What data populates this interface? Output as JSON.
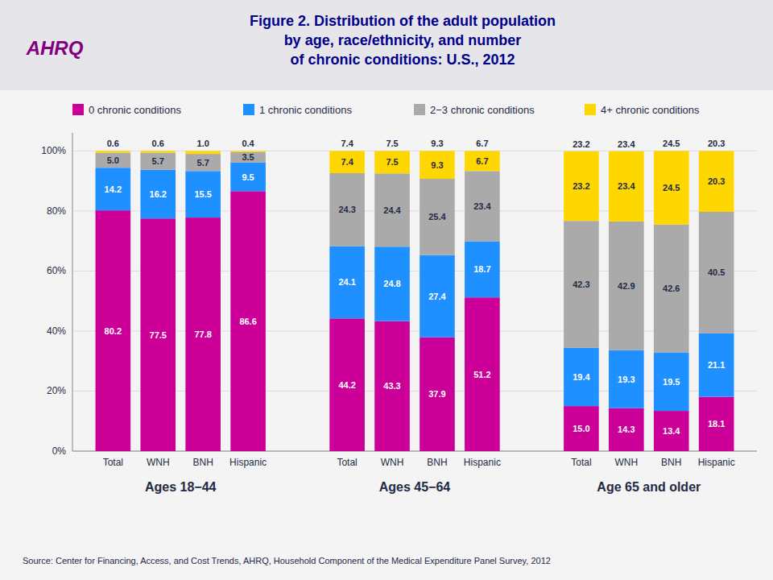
{
  "chart_data": {
    "type": "bar",
    "stacked": true,
    "title": "Figure 2. Distribution of the adult population\nby age, race/ethnicity, and number\nof chronic conditions: U.S., 2012",
    "logo": "AHRQ",
    "source": "Source: Center for Financing, Access, and Cost Trends, AHRQ, Household Component of the Medical Expenditure Panel Survey,  2012",
    "groups": [
      "Ages 18−44",
      "Ages 45−64",
      "Age 65 and older"
    ],
    "categories": [
      "Total",
      "WNH",
      "BNH",
      "Hispanic",
      "Total",
      "WNH",
      "BNH",
      "Hispanic",
      "Total",
      "WNH",
      "BNH",
      "Hispanic"
    ],
    "series": [
      {
        "name": "0 chronic conditions",
        "color": "#CC0099",
        "values": [
          80.2,
          77.5,
          77.8,
          86.6,
          44.2,
          43.3,
          37.9,
          51.2,
          15.0,
          14.3,
          13.4,
          18.1
        ],
        "value_labels": [
          "80.2",
          "77.5",
          "77.8",
          "86.6",
          "44.2",
          "43.3",
          "37.9",
          "51.2",
          "15.0",
          "14.3",
          "13.4",
          "18.1"
        ]
      },
      {
        "name": "1 chronic conditions",
        "color": "#1E90FF",
        "values": [
          14.2,
          16.2,
          15.5,
          9.5,
          24.1,
          24.8,
          27.4,
          18.7,
          19.4,
          19.3,
          19.5,
          21.1
        ],
        "value_labels": [
          "14.2",
          "16.2",
          "15.5",
          "9.5",
          "24.1",
          "24.8",
          "27.4",
          "18.7",
          "19.4",
          "19.3",
          "19.5",
          "21.1"
        ]
      },
      {
        "name": "2−3 chronic conditions",
        "color": "#AAAAAA",
        "values": [
          5.0,
          5.7,
          5.7,
          3.5,
          24.3,
          24.4,
          25.4,
          23.4,
          42.3,
          42.9,
          42.6,
          40.5
        ],
        "value_labels": [
          "5.0",
          "5.7",
          "5.7",
          "3.5",
          "24.3",
          "24.4",
          "25.4",
          "23.4",
          "42.3",
          "42.9",
          "42.6",
          "40.5"
        ]
      },
      {
        "name": "4+ chronic conditions",
        "color": "#FFD700",
        "values": [
          0.6,
          0.6,
          1.0,
          0.4,
          7.4,
          7.5,
          9.3,
          6.7,
          23.2,
          23.4,
          24.5,
          20.3
        ],
        "value_labels": [
          "0.6",
          "0.6",
          "1.0",
          "0.4",
          "7.4",
          "7.5",
          "9.3",
          "6.7",
          "23.2",
          "23.4",
          "24.5",
          "20.3"
        ]
      }
    ],
    "ylim": [
      0,
      106
    ],
    "yticks": [
      {
        "value": 0,
        "label": "0%"
      },
      {
        "value": 20,
        "label": "20%"
      },
      {
        "value": 40,
        "label": "40%"
      },
      {
        "value": 60,
        "label": "60%"
      },
      {
        "value": 80,
        "label": "80%"
      },
      {
        "value": 100,
        "label": "100%"
      }
    ],
    "grid": true,
    "data_labels": true
  }
}
